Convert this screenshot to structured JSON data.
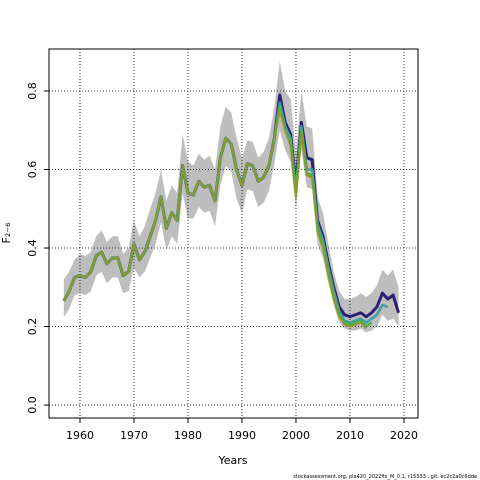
{
  "chart_data": {
    "type": "line",
    "xlabel": "Years",
    "ylabel": "F₂₋₆",
    "footnote": "stockassessment.org, pla420_2022fix_M_0.1, r15533 ,  git: ec2c2a0c6dde",
    "x": [
      1957,
      1958,
      1959,
      1960,
      1961,
      1962,
      1963,
      1964,
      1965,
      1966,
      1967,
      1968,
      1969,
      1970,
      1971,
      1972,
      1973,
      1974,
      1975,
      1976,
      1977,
      1978,
      1979,
      1980,
      1981,
      1982,
      1983,
      1984,
      1985,
      1986,
      1987,
      1988,
      1989,
      1990,
      1991,
      1992,
      1993,
      1994,
      1995,
      1996,
      1997,
      1998,
      1999,
      2000,
      2001,
      2002,
      2003,
      2004,
      2005,
      2006,
      2007,
      2008,
      2009,
      2010,
      2011,
      2012,
      2013,
      2014,
      2015,
      2016,
      2017,
      2018,
      2019
    ],
    "band": {
      "color": "#bebebe",
      "upper": [
        0.32,
        0.34,
        0.37,
        0.385,
        0.38,
        0.39,
        0.43,
        0.445,
        0.415,
        0.43,
        0.43,
        0.385,
        0.4,
        0.47,
        0.43,
        0.455,
        0.5,
        0.54,
        0.6,
        0.52,
        0.56,
        0.54,
        0.69,
        0.62,
        0.61,
        0.64,
        0.625,
        0.635,
        0.6,
        0.71,
        0.76,
        0.745,
        0.68,
        0.63,
        0.675,
        0.67,
        0.63,
        0.645,
        0.68,
        0.76,
        0.875,
        0.8,
        0.78,
        0.64,
        0.8,
        0.71,
        0.705,
        0.53,
        0.49,
        0.41,
        0.34,
        0.29,
        0.27,
        0.27,
        0.275,
        0.285,
        0.275,
        0.285,
        0.305,
        0.345,
        0.33,
        0.345,
        0.3
      ],
      "lower": [
        0.225,
        0.245,
        0.28,
        0.285,
        0.28,
        0.29,
        0.33,
        0.34,
        0.31,
        0.325,
        0.325,
        0.285,
        0.29,
        0.35,
        0.325,
        0.34,
        0.375,
        0.41,
        0.465,
        0.395,
        0.43,
        0.41,
        0.54,
        0.475,
        0.475,
        0.505,
        0.49,
        0.495,
        0.455,
        0.56,
        0.61,
        0.595,
        0.525,
        0.49,
        0.55,
        0.545,
        0.505,
        0.515,
        0.545,
        0.615,
        0.7,
        0.65,
        0.62,
        0.5,
        0.65,
        0.555,
        0.55,
        0.41,
        0.375,
        0.31,
        0.255,
        0.21,
        0.195,
        0.19,
        0.19,
        0.195,
        0.185,
        0.19,
        0.2,
        0.23,
        0.215,
        0.22,
        0.2
      ]
    },
    "series": [
      {
        "color": "#2c1f78",
        "width": 3,
        "values": [
          0.265,
          0.29,
          0.325,
          0.33,
          0.325,
          0.34,
          0.38,
          0.39,
          0.36,
          0.375,
          0.375,
          0.33,
          0.34,
          0.41,
          0.37,
          0.39,
          0.43,
          0.47,
          0.53,
          0.45,
          0.49,
          0.47,
          0.61,
          0.54,
          0.535,
          0.57,
          0.555,
          0.56,
          0.52,
          0.63,
          0.68,
          0.665,
          0.6,
          0.56,
          0.615,
          0.61,
          0.57,
          0.58,
          0.61,
          0.68,
          0.79,
          0.72,
          0.69,
          0.56,
          0.72,
          0.63,
          0.625,
          0.47,
          0.43,
          0.36,
          0.3,
          0.25,
          0.23,
          0.225,
          0.23,
          0.235,
          0.225,
          0.235,
          0.25,
          0.285,
          0.27,
          0.28,
          0.235
        ]
      },
      {
        "color": "#3fa0a8",
        "width": 2.5,
        "values": [
          0.265,
          0.29,
          0.325,
          0.33,
          0.325,
          0.34,
          0.38,
          0.39,
          0.36,
          0.375,
          0.375,
          0.33,
          0.34,
          0.41,
          0.37,
          0.39,
          0.43,
          0.47,
          0.53,
          0.45,
          0.49,
          0.47,
          0.61,
          0.54,
          0.535,
          0.57,
          0.555,
          0.56,
          0.52,
          0.63,
          0.68,
          0.665,
          0.6,
          0.56,
          0.615,
          0.61,
          0.57,
          0.58,
          0.61,
          0.68,
          0.77,
          0.71,
          0.68,
          0.55,
          0.71,
          0.6,
          0.6,
          0.46,
          0.42,
          0.35,
          0.29,
          0.24,
          0.215,
          0.21,
          0.215,
          0.22,
          0.21,
          0.22,
          0.23,
          0.255,
          0.25,
          null,
          null
        ]
      },
      {
        "color": "#4cae4c",
        "width": 2.5,
        "values": [
          0.265,
          0.29,
          0.325,
          0.33,
          0.325,
          0.34,
          0.38,
          0.39,
          0.36,
          0.375,
          0.375,
          0.33,
          0.34,
          0.41,
          0.37,
          0.39,
          0.43,
          0.47,
          0.53,
          0.45,
          0.49,
          0.47,
          0.61,
          0.54,
          0.535,
          0.57,
          0.555,
          0.56,
          0.52,
          0.63,
          0.68,
          0.665,
          0.6,
          0.56,
          0.615,
          0.61,
          0.57,
          0.58,
          0.61,
          0.68,
          0.76,
          0.7,
          0.67,
          0.54,
          0.7,
          0.59,
          0.585,
          0.45,
          0.41,
          0.34,
          0.28,
          0.23,
          0.21,
          0.205,
          0.21,
          0.215,
          0.2,
          0.21,
          null,
          null,
          null,
          null,
          null
        ]
      },
      {
        "color": "#8c9a2c",
        "width": 2,
        "values": [
          0.265,
          0.29,
          0.325,
          0.33,
          0.325,
          0.34,
          0.38,
          0.39,
          0.36,
          0.375,
          0.375,
          0.33,
          0.34,
          0.41,
          0.37,
          0.39,
          0.43,
          0.47,
          0.53,
          0.45,
          0.49,
          0.47,
          0.61,
          0.54,
          0.535,
          0.57,
          0.555,
          0.56,
          0.52,
          0.63,
          0.68,
          0.665,
          0.6,
          0.56,
          0.615,
          0.61,
          0.57,
          0.58,
          0.61,
          0.68,
          0.75,
          0.7,
          0.66,
          0.53,
          0.69,
          0.585,
          0.58,
          0.44,
          0.4,
          0.33,
          0.27,
          0.225,
          0.205,
          0.2,
          0.205,
          0.21,
          0.195,
          null,
          null,
          null,
          null,
          null,
          null
        ]
      }
    ],
    "xlim": [
      1954.26,
      2022.6
    ],
    "xticks": [
      1960,
      1970,
      1980,
      1990,
      2000,
      2010,
      2020
    ],
    "ylim": [
      -0.033,
      0.907
    ],
    "yticks": [
      {
        "value": 0,
        "label": "0.0"
      },
      {
        "value": 0.2,
        "label": "0.2"
      },
      {
        "value": 0.4,
        "label": "0.4"
      },
      {
        "value": 0.6,
        "label": "0.6"
      },
      {
        "value": 0.8,
        "label": "0.8"
      }
    ],
    "grid": true
  }
}
